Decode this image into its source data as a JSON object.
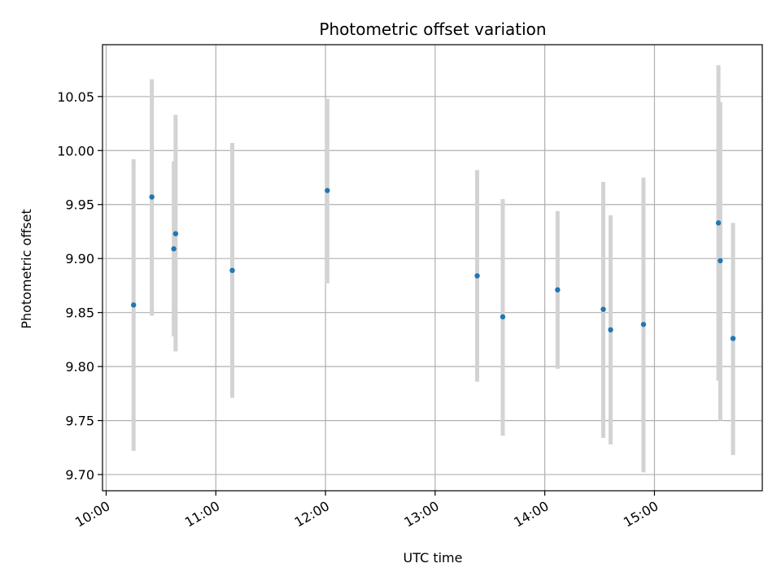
{
  "chart_data": {
    "type": "scatter",
    "title": "Photometric offset variation",
    "xlabel": "UTC time",
    "ylabel": "Photometric offset",
    "x_is_time": true,
    "xlim": [
      "09:58",
      "15:59"
    ],
    "ylim": [
      9.685,
      10.098
    ],
    "x_ticks": [
      "10:00",
      "11:00",
      "12:00",
      "13:00",
      "14:00",
      "15:00"
    ],
    "y_ticks": [
      9.7,
      9.75,
      9.8,
      9.85,
      9.9,
      9.95,
      10.0,
      10.05
    ],
    "y_tick_labels": [
      "9.70",
      "9.75",
      "9.80",
      "9.85",
      "9.90",
      "9.95",
      "10.00",
      "10.05"
    ],
    "grid": true,
    "marker_color": "#1f77b4",
    "errorbar_color": "#d3d3d3",
    "series": [
      {
        "points": [
          {
            "t": "10:15",
            "y": 9.857,
            "lo": 9.722,
            "hi": 9.992
          },
          {
            "t": "10:25",
            "y": 9.957,
            "lo": 9.847,
            "hi": 10.066
          },
          {
            "t": "10:37",
            "y": 9.909,
            "lo": 9.828,
            "hi": 9.99
          },
          {
            "t": "10:38",
            "y": 9.923,
            "lo": 9.814,
            "hi": 10.033
          },
          {
            "t": "11:09",
            "y": 9.889,
            "lo": 9.771,
            "hi": 10.007
          },
          {
            "t": "12:01",
            "y": 9.963,
            "lo": 9.877,
            "hi": 10.048
          },
          {
            "t": "13:23",
            "y": 9.884,
            "lo": 9.786,
            "hi": 9.982
          },
          {
            "t": "13:37",
            "y": 9.846,
            "lo": 9.736,
            "hi": 9.955
          },
          {
            "t": "14:07",
            "y": 9.871,
            "lo": 9.798,
            "hi": 9.944
          },
          {
            "t": "14:32",
            "y": 9.853,
            "lo": 9.734,
            "hi": 9.971
          },
          {
            "t": "14:36",
            "y": 9.834,
            "lo": 9.728,
            "hi": 9.94
          },
          {
            "t": "14:54",
            "y": 9.839,
            "lo": 9.702,
            "hi": 9.975
          },
          {
            "t": "15:35",
            "y": 9.933,
            "lo": 9.787,
            "hi": 10.079
          },
          {
            "t": "15:36",
            "y": 9.898,
            "lo": 9.75,
            "hi": 10.045
          },
          {
            "t": "15:43",
            "y": 9.826,
            "lo": 9.718,
            "hi": 9.933
          }
        ]
      }
    ]
  }
}
